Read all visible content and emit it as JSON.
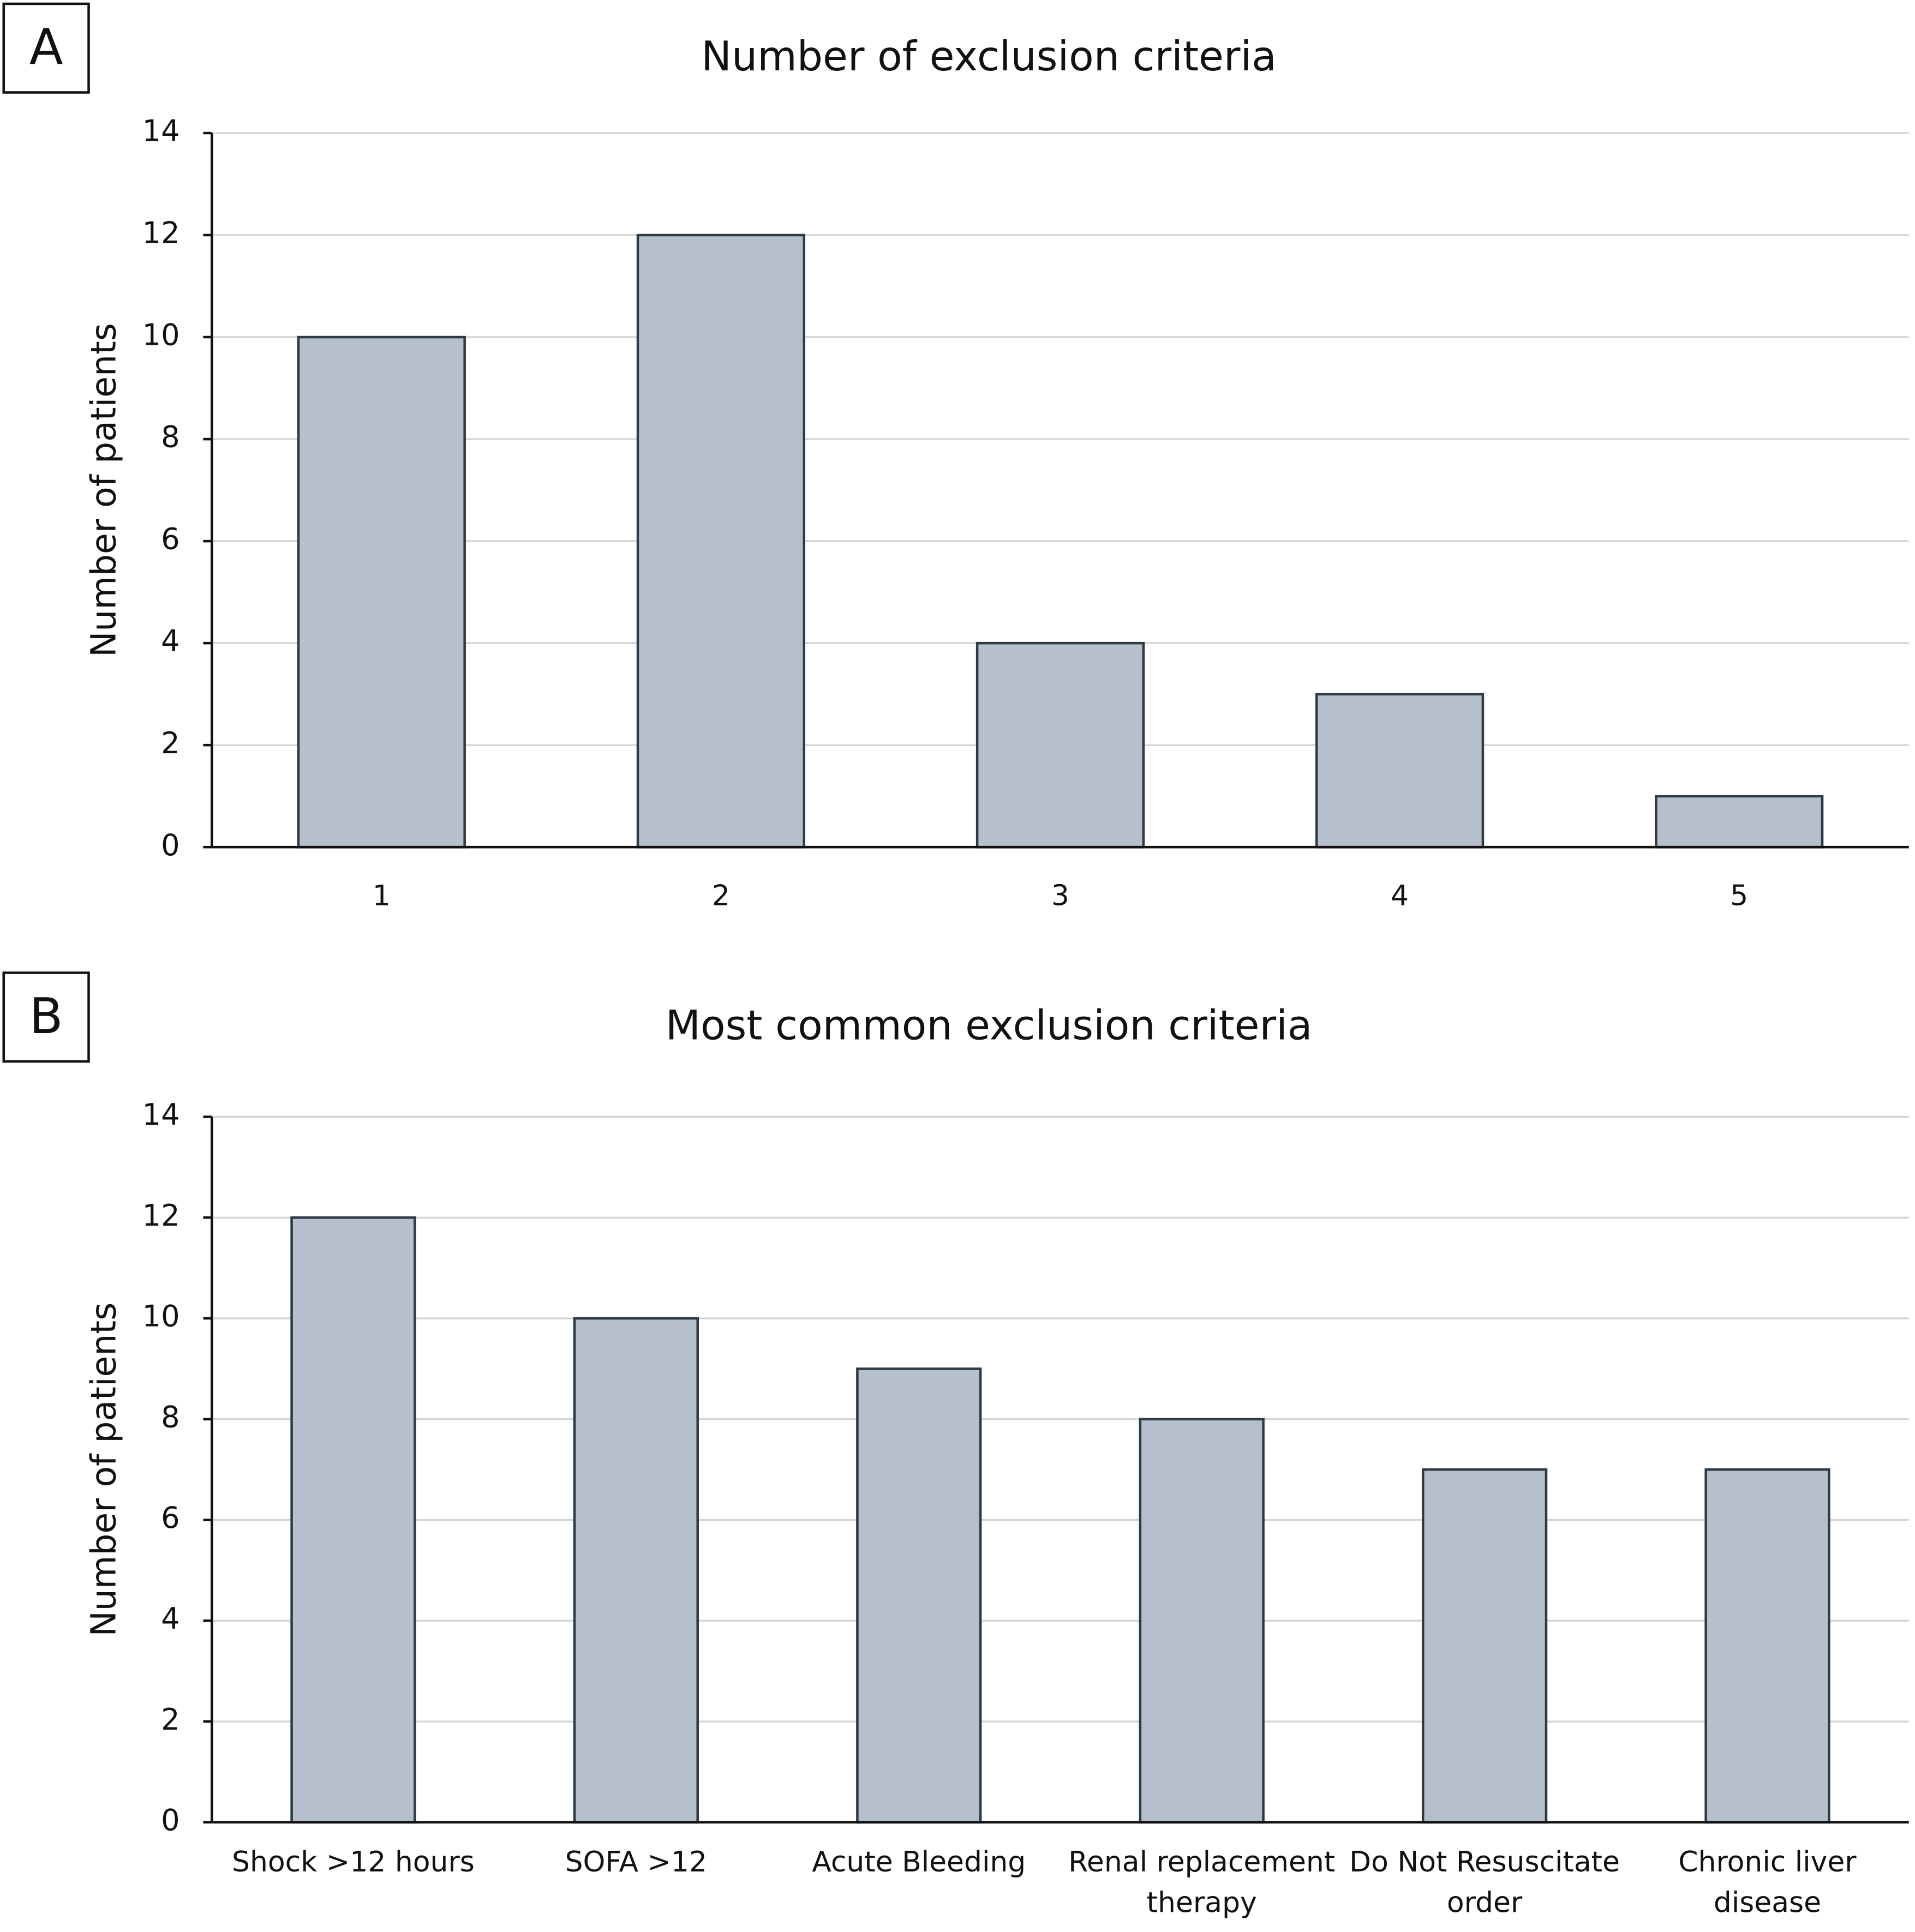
{
  "chart_data": [
    {
      "type": "bar",
      "label": "A",
      "title": "Number of exclusion criteria",
      "y_label": "Number of patients",
      "categories": [
        "1",
        "2",
        "3",
        "4",
        "5"
      ],
      "values": [
        10,
        12,
        4,
        3,
        1
      ],
      "color": "#b6c0cc",
      "ylim": [
        0,
        14
      ],
      "yticks": [
        0,
        2,
        4,
        6,
        8,
        10,
        12,
        14
      ],
      "grid": true
    },
    {
      "type": "bar",
      "label": "B",
      "title": "Most common exclusion criteria",
      "y_label": "Number of patients",
      "categories": [
        "Shock >12 hours",
        "SOFA >12",
        "Acute Bleeding",
        "Renal replacement therapy",
        "Do Not Resuscitate order",
        "Chronic liver disease"
      ],
      "values": [
        12,
        10,
        9,
        8,
        7,
        7
      ],
      "color": "#b6c0cc",
      "ylim": [
        0,
        14
      ],
      "yticks": [
        0,
        2,
        4,
        6,
        8,
        10,
        12,
        14
      ],
      "grid": true
    }
  ]
}
